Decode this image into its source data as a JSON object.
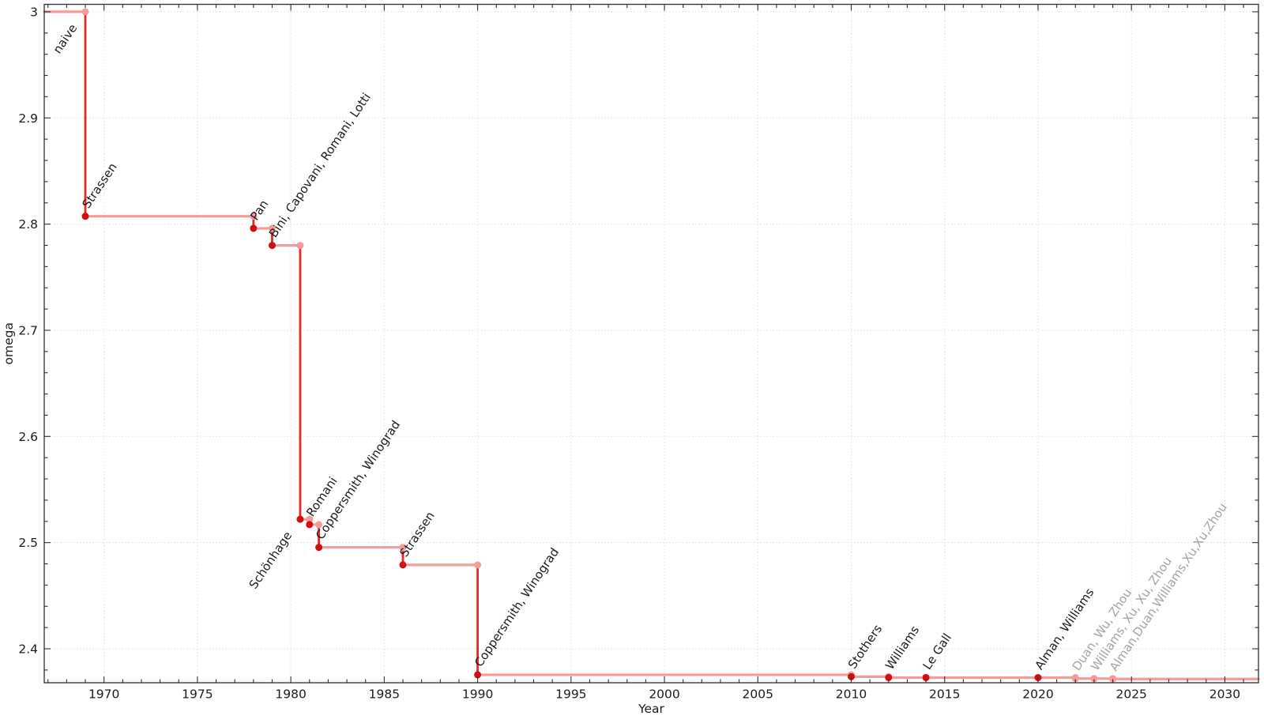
{
  "chart_data": {
    "type": "line",
    "subtype": "step-post",
    "title": "",
    "xlabel": "Year",
    "ylabel": "omega",
    "xlim": [
      1966.8,
      2031.8
    ],
    "ylim": [
      2.368,
      3.007
    ],
    "grid": true,
    "legend": "none",
    "x_ticks": [
      {
        "value": 1970,
        "label": "1970"
      },
      {
        "value": 1975,
        "label": "1975"
      },
      {
        "value": 1980,
        "label": "1980"
      },
      {
        "value": 1985,
        "label": "1985"
      },
      {
        "value": 1990,
        "label": "1990"
      },
      {
        "value": 1995,
        "label": "1995"
      },
      {
        "value": 2000,
        "label": "2000"
      },
      {
        "value": 2005,
        "label": "2005"
      },
      {
        "value": 2010,
        "label": "2010"
      },
      {
        "value": 2015,
        "label": "2015"
      },
      {
        "value": 2020,
        "label": "2020"
      },
      {
        "value": 2025,
        "label": "2025"
      },
      {
        "value": 2030,
        "label": "2030"
      }
    ],
    "y_ticks": [
      {
        "value": 2.4,
        "label": "2.4"
      },
      {
        "value": 2.5,
        "label": "2.5"
      },
      {
        "value": 2.6,
        "label": "2.6"
      },
      {
        "value": 2.7,
        "label": "2.7"
      },
      {
        "value": 2.8,
        "label": "2.8"
      },
      {
        "value": 2.9,
        "label": "2.9"
      },
      {
        "value": 3.0,
        "label": "3"
      }
    ],
    "x_minor_step_years": 1,
    "y_minor_step": 0.02,
    "start": {
      "label": "naive",
      "omega": 3.0,
      "year_from": 1966.8,
      "label_placement": "below-left"
    },
    "events": [
      {
        "label": "Strassen",
        "year": 1969,
        "omega": 2.8074,
        "emphasis": "major",
        "label_placement": "above"
      },
      {
        "label": "Pan",
        "year": 1978,
        "omega": 2.796,
        "emphasis": "major",
        "label_placement": "above"
      },
      {
        "label": "Bini, Capovani, Romani, Lotti",
        "year": 1979,
        "omega": 2.7799,
        "emphasis": "major",
        "label_placement": "above"
      },
      {
        "label": "Schönhage",
        "year": 1980.5,
        "omega": 2.522,
        "emphasis": "major",
        "label_placement": "below-left"
      },
      {
        "label": "Romani",
        "year": 1981,
        "omega": 2.517,
        "emphasis": "major",
        "label_placement": "above"
      },
      {
        "label": "Coppersmith, Winograd",
        "year": 1981.5,
        "omega": 2.4955,
        "emphasis": "major",
        "label_placement": "above"
      },
      {
        "label": "Strassen",
        "year": 1986,
        "omega": 2.479,
        "emphasis": "major",
        "label_placement": "above"
      },
      {
        "label": "Coppersmith, Winograd",
        "year": 1990,
        "omega": 2.3755,
        "emphasis": "major",
        "label_placement": "above"
      },
      {
        "label": "Stothers",
        "year": 2010,
        "omega": 2.3737,
        "emphasis": "major",
        "label_placement": "above"
      },
      {
        "label": "Williams",
        "year": 2012,
        "omega": 2.3729,
        "emphasis": "major",
        "label_placement": "above"
      },
      {
        "label": "Le Gall",
        "year": 2014,
        "omega": 2.3728639,
        "emphasis": "major",
        "label_placement": "above"
      },
      {
        "label": "Alman, Williams",
        "year": 2020,
        "omega": 2.3728596,
        "emphasis": "major",
        "label_placement": "above"
      },
      {
        "label": "Duan, Wu, Zhou",
        "year": 2022,
        "omega": 2.37188,
        "emphasis": "recent",
        "label_placement": "above"
      },
      {
        "label": "Williams, Xu, Xu, Zhou",
        "year": 2023,
        "omega": 2.371866,
        "emphasis": "recent",
        "label_placement": "above"
      },
      {
        "label": "Alman,Duan,Williams,Xu,Xu,Zhou",
        "year": 2024,
        "omega": 2.371552,
        "emphasis": "recent",
        "label_placement": "above"
      }
    ],
    "colors": {
      "step_horizontal": "#f59c9a",
      "step_drop": "#e42a27",
      "event_dot": "#d40d10",
      "corner_dot": "#f59c9a",
      "label_major": "#1b1b1b",
      "label_recent": "#a3a3a3",
      "grid": "#dedede",
      "frame": "#2e2e2e",
      "tick_text": "#1b1b1b",
      "background": "#ffffff"
    },
    "label_rotation_deg": -56
  }
}
